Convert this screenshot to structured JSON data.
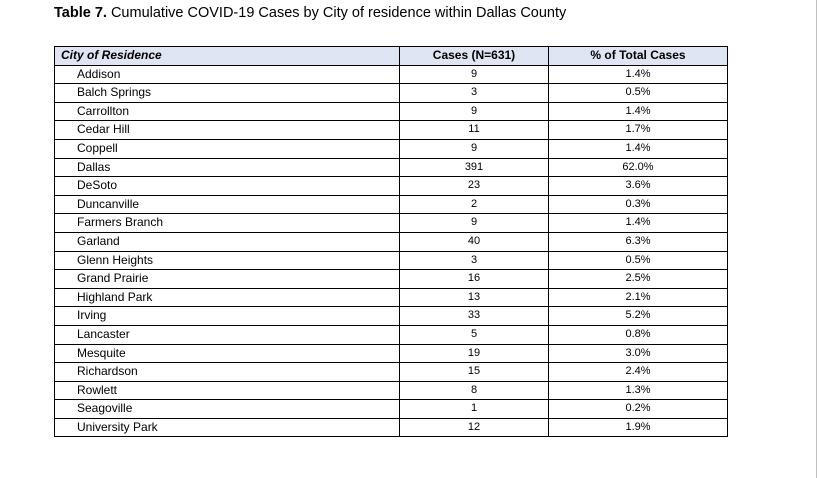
{
  "caption": {
    "label": "Table 7.",
    "text": " Cumulative COVID-19 Cases by City of residence within Dallas County"
  },
  "table": {
    "headers": [
      "City of Residence",
      "Cases (N=631)",
      "% of Total Cases"
    ],
    "header_color": "#dfe5f3",
    "rows": [
      [
        "Addison",
        "9",
        "1.4%"
      ],
      [
        "Balch Springs",
        "3",
        "0.5%"
      ],
      [
        "Carrollton",
        "9",
        "1.4%"
      ],
      [
        "Cedar Hill",
        "11",
        "1.7%"
      ],
      [
        "Coppell",
        "9",
        "1.4%"
      ],
      [
        "Dallas",
        "391",
        "62.0%"
      ],
      [
        "DeSoto",
        "23",
        "3.6%"
      ],
      [
        "Duncanville",
        "2",
        "0.3%"
      ],
      [
        "Farmers Branch",
        "9",
        "1.4%"
      ],
      [
        "Garland",
        "40",
        "6.3%"
      ],
      [
        "Glenn Heights",
        "3",
        "0.5%"
      ],
      [
        "Grand Prairie",
        "16",
        "2.5%"
      ],
      [
        "Highland Park",
        "13",
        "2.1%"
      ],
      [
        "Irving",
        "33",
        "5.2%"
      ],
      [
        "Lancaster",
        "5",
        "0.8%"
      ],
      [
        "Mesquite",
        "19",
        "3.0%"
      ],
      [
        "Richardson",
        "15",
        "2.4%"
      ],
      [
        "Rowlett",
        "8",
        "1.3%"
      ],
      [
        "Seagoville",
        "1",
        "0.2%"
      ],
      [
        "University Park",
        "12",
        "1.9%"
      ]
    ]
  }
}
